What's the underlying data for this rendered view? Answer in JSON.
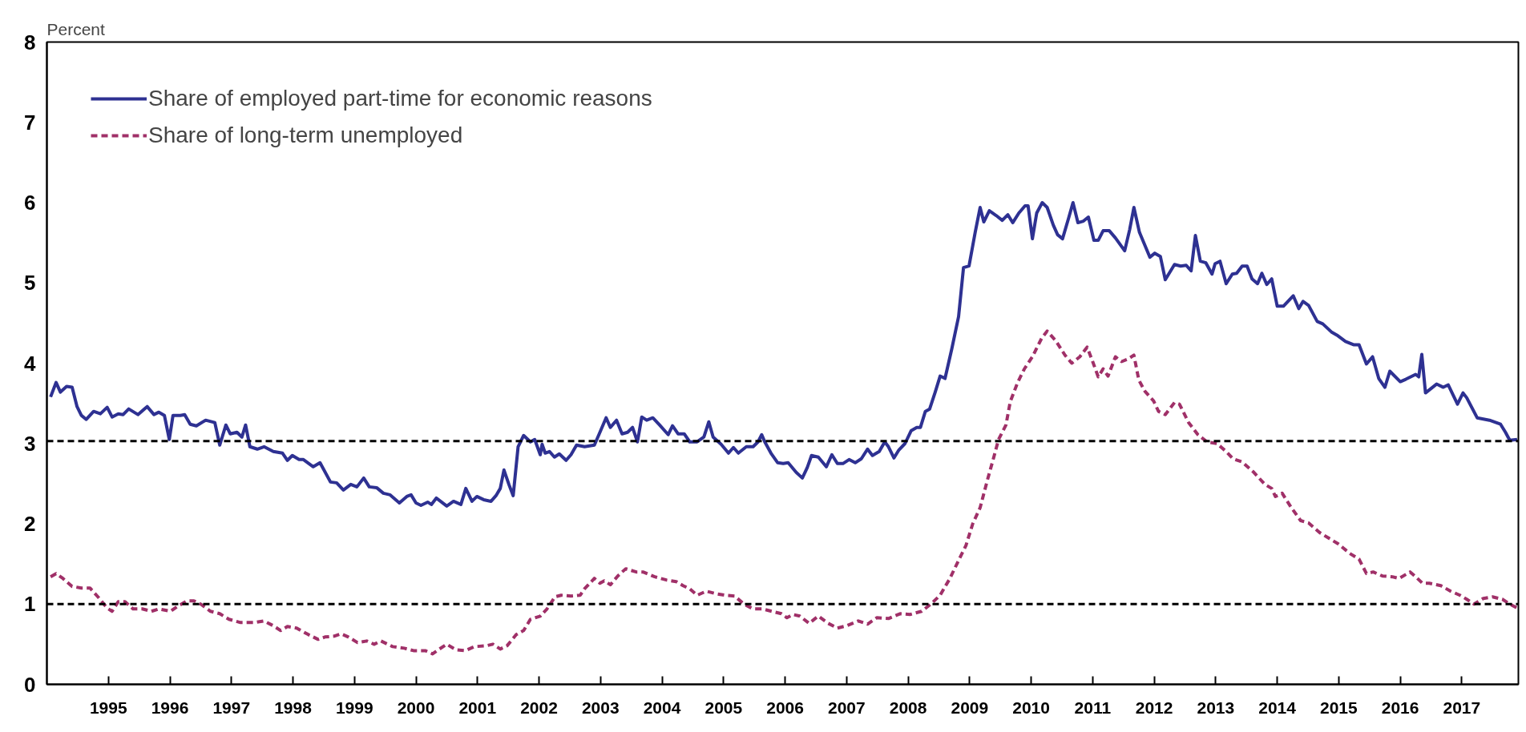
{
  "chart_data": {
    "type": "line",
    "ylabel": "Percent",
    "xlim": [
      1994,
      2017.92
    ],
    "xticks": [
      1995,
      1996,
      1997,
      1998,
      1999,
      2000,
      2001,
      2002,
      2003,
      2004,
      2005,
      2006,
      2007,
      2008,
      2009,
      2010,
      2011,
      2012,
      2013,
      2014,
      2015,
      2016,
      2017
    ],
    "ylim": [
      0,
      8
    ],
    "yticks": [
      0,
      1,
      2,
      3,
      4,
      5,
      6,
      7,
      8
    ],
    "grid": false,
    "legend": "top left",
    "ref_lines": [
      {
        "axis": "y",
        "value": 3.03,
        "color": "#000000",
        "line_style": "dashed"
      },
      {
        "axis": "y",
        "value": 1.0,
        "color": "#000000",
        "line_style": "dashed"
      }
    ],
    "series": [
      {
        "name": "Share of employed part-time for economic reasons",
        "color": "#2e3192",
        "line_style": "solid",
        "x": [
          1994.06,
          1994.15,
          1994.22,
          1994.32,
          1994.41,
          1994.49,
          1994.56,
          1994.64,
          1994.76,
          1994.87,
          1994.98,
          1995.06,
          1995.16,
          1995.24,
          1995.33,
          1995.48,
          1995.63,
          1995.74,
          1995.82,
          1995.91,
          1995.99,
          1996.05,
          1996.17,
          1996.24,
          1996.33,
          1996.43,
          1996.58,
          1996.73,
          1996.81,
          1996.91,
          1996.98,
          1997.09,
          1997.17,
          1997.23,
          1997.3,
          1997.42,
          1997.53,
          1997.68,
          1997.83,
          1997.91,
          1997.99,
          1998.1,
          1998.17,
          1998.33,
          1998.44,
          1998.61,
          1998.71,
          1998.82,
          1998.94,
          1999.04,
          1999.15,
          1999.24,
          1999.36,
          1999.47,
          1999.58,
          1999.73,
          1999.85,
          1999.92,
          2000.0,
          2000.08,
          2000.19,
          2000.25,
          2000.33,
          2000.5,
          2000.61,
          2000.73,
          2000.81,
          2000.91,
          2000.99,
          2001.1,
          2001.22,
          2001.3,
          2001.37,
          2001.43,
          2001.51,
          2001.58,
          2001.66,
          2001.75,
          2001.86,
          2001.93,
          2002.02,
          2002.05,
          2002.1,
          2002.17,
          2002.25,
          2002.33,
          2002.44,
          2002.52,
          2002.61,
          2002.74,
          2002.9,
          2002.99,
          2003.09,
          2003.16,
          2003.26,
          2003.35,
          2003.44,
          2003.52,
          2003.6,
          2003.67,
          2003.75,
          2003.85,
          2003.96,
          2004.1,
          2004.17,
          2004.26,
          2004.36,
          2004.45,
          2004.57,
          2004.68,
          2004.76,
          2004.83,
          2004.96,
          2005.08,
          2005.16,
          2005.24,
          2005.37,
          2005.48,
          2005.56,
          2005.62,
          2005.67,
          2005.77,
          2005.88,
          2005.97,
          2006.05,
          2006.18,
          2006.28,
          2006.36,
          2006.43,
          2006.54,
          2006.67,
          2006.76,
          2006.85,
          2006.94,
          2007.04,
          2007.14,
          2007.24,
          2007.34,
          2007.42,
          2007.53,
          2007.62,
          2007.68,
          2007.77,
          2007.85,
          2007.95,
          2008.05,
          2008.14,
          2008.2,
          2008.28,
          2008.35,
          2008.44,
          2008.52,
          2008.6,
          2008.71,
          2008.82,
          2008.9,
          2008.99,
          2009.09,
          2009.17,
          2009.23,
          2009.32,
          2009.43,
          2009.53,
          2009.62,
          2009.7,
          2009.8,
          2009.9,
          2009.95,
          2010.02,
          2010.09,
          2010.18,
          2010.26,
          2010.36,
          2010.43,
          2010.51,
          2010.61,
          2010.68,
          2010.76,
          2010.85,
          2010.93,
          2011.02,
          2011.09,
          2011.17,
          2011.27,
          2011.37,
          2011.52,
          2011.6,
          2011.67,
          2011.76,
          2011.93,
          2012.01,
          2012.1,
          2012.18,
          2012.33,
          2012.43,
          2012.52,
          2012.6,
          2012.67,
          2012.75,
          2012.84,
          2012.94,
          2012.99,
          2013.07,
          2013.17,
          2013.27,
          2013.34,
          2013.43,
          2013.51,
          2013.59,
          2013.68,
          2013.75,
          2013.83,
          2013.91,
          2014.0,
          2014.1,
          2014.26,
          2014.35,
          2014.42,
          2014.51,
          2014.65,
          2014.74,
          2014.88,
          2014.97,
          2015.11,
          2015.24,
          2015.33,
          2015.45,
          2015.55,
          2015.65,
          2015.75,
          2015.83,
          2016.0,
          2016.09,
          2016.25,
          2016.3,
          2016.35,
          2016.41,
          2016.59,
          2016.7,
          2016.78,
          2016.93,
          2017.02,
          2017.08,
          2017.25,
          2017.45,
          2017.63,
          2017.71,
          2017.78,
          2017.9
        ],
        "values": [
          3.58,
          3.76,
          3.64,
          3.71,
          3.7,
          3.46,
          3.35,
          3.3,
          3.4,
          3.37,
          3.45,
          3.33,
          3.37,
          3.36,
          3.43,
          3.36,
          3.46,
          3.36,
          3.39,
          3.35,
          3.05,
          3.35,
          3.35,
          3.36,
          3.24,
          3.22,
          3.29,
          3.26,
          2.98,
          3.23,
          3.12,
          3.14,
          3.08,
          3.23,
          2.96,
          2.93,
          2.96,
          2.9,
          2.88,
          2.79,
          2.85,
          2.8,
          2.8,
          2.71,
          2.76,
          2.52,
          2.51,
          2.42,
          2.49,
          2.46,
          2.57,
          2.46,
          2.45,
          2.38,
          2.36,
          2.26,
          2.34,
          2.36,
          2.26,
          2.23,
          2.27,
          2.24,
          2.32,
          2.22,
          2.28,
          2.24,
          2.44,
          2.28,
          2.34,
          2.3,
          2.28,
          2.35,
          2.44,
          2.67,
          2.49,
          2.35,
          2.96,
          3.1,
          3.02,
          3.05,
          2.86,
          2.99,
          2.88,
          2.9,
          2.83,
          2.87,
          2.79,
          2.86,
          2.98,
          2.96,
          2.98,
          3.14,
          3.32,
          3.2,
          3.29,
          3.12,
          3.14,
          3.2,
          3.02,
          3.33,
          3.29,
          3.32,
          3.23,
          3.11,
          3.22,
          3.12,
          3.12,
          3.02,
          3.02,
          3.08,
          3.27,
          3.08,
          2.99,
          2.88,
          2.95,
          2.88,
          2.96,
          2.96,
          3.02,
          3.11,
          3.02,
          2.88,
          2.76,
          2.75,
          2.76,
          2.64,
          2.57,
          2.7,
          2.85,
          2.83,
          2.71,
          2.86,
          2.75,
          2.75,
          2.8,
          2.76,
          2.81,
          2.93,
          2.85,
          2.9,
          3.02,
          2.96,
          2.82,
          2.92,
          3.0,
          3.16,
          3.2,
          3.2,
          3.4,
          3.43,
          3.64,
          3.84,
          3.81,
          4.18,
          4.58,
          5.19,
          5.21,
          5.63,
          5.94,
          5.76,
          5.9,
          5.84,
          5.78,
          5.85,
          5.75,
          5.87,
          5.96,
          5.96,
          5.55,
          5.87,
          6.0,
          5.94,
          5.72,
          5.6,
          5.55,
          5.81,
          6.0,
          5.75,
          5.77,
          5.82,
          5.53,
          5.53,
          5.65,
          5.65,
          5.56,
          5.4,
          5.66,
          5.94,
          5.63,
          5.32,
          5.37,
          5.33,
          5.04,
          5.23,
          5.21,
          5.22,
          5.15,
          5.59,
          5.27,
          5.25,
          5.11,
          5.24,
          5.27,
          4.99,
          5.11,
          5.12,
          5.21,
          5.21,
          5.05,
          4.99,
          5.12,
          4.98,
          5.05,
          4.71,
          4.71,
          4.84,
          4.68,
          4.77,
          4.72,
          4.52,
          4.49,
          4.39,
          4.35,
          4.27,
          4.23,
          4.23,
          3.99,
          4.08,
          3.81,
          3.7,
          3.9,
          3.77,
          3.8,
          3.86,
          3.83,
          4.11,
          3.63,
          3.74,
          3.7,
          3.73,
          3.49,
          3.63,
          3.57,
          3.32,
          3.29,
          3.24,
          3.14,
          3.04,
          3.05
        ]
      },
      {
        "name": "Share of long-term unemployed",
        "color": "#a03068",
        "line_style": "dashed",
        "x": [
          1994.06,
          1994.15,
          1994.26,
          1994.41,
          1994.56,
          1994.7,
          1994.83,
          1994.98,
          1995.06,
          1995.16,
          1995.27,
          1995.4,
          1995.55,
          1995.7,
          1995.82,
          1996.01,
          1996.12,
          1996.28,
          1996.39,
          1996.5,
          1996.66,
          1996.81,
          1996.96,
          1997.15,
          1997.38,
          1997.53,
          1997.68,
          1997.8,
          1997.91,
          1998.06,
          1998.25,
          1998.41,
          1998.52,
          1998.67,
          1998.78,
          1998.9,
          1999.05,
          1999.2,
          1999.32,
          1999.43,
          1999.62,
          1999.81,
          1999.96,
          2000.15,
          2000.27,
          2000.38,
          2000.5,
          2000.65,
          2000.8,
          2000.95,
          2001.14,
          2001.25,
          2001.37,
          2001.48,
          2001.63,
          2001.75,
          2001.86,
          2002.02,
          2002.13,
          2002.26,
          2002.36,
          2002.52,
          2002.67,
          2002.74,
          2002.9,
          2002.99,
          2003.06,
          2003.16,
          2003.28,
          2003.41,
          2003.58,
          2003.69,
          2003.88,
          2004.07,
          2004.23,
          2004.34,
          2004.45,
          2004.57,
          2004.72,
          2004.87,
          2005.02,
          2005.18,
          2005.33,
          2005.48,
          2005.63,
          2005.78,
          2005.94,
          2006.03,
          2006.13,
          2006.24,
          2006.39,
          2006.54,
          2006.7,
          2006.85,
          2007.0,
          2007.19,
          2007.34,
          2007.49,
          2007.68,
          2007.87,
          2008.03,
          2008.22,
          2008.37,
          2008.52,
          2008.68,
          2008.83,
          2008.94,
          2009.05,
          2009.17,
          2009.28,
          2009.4,
          2009.47,
          2009.59,
          2009.66,
          2009.78,
          2009.89,
          2010.02,
          2010.17,
          2010.26,
          2010.4,
          2010.55,
          2010.66,
          2010.79,
          2010.91,
          2011.0,
          2011.09,
          2011.17,
          2011.25,
          2011.37,
          2011.47,
          2011.57,
          2011.67,
          2011.75,
          2011.85,
          2011.99,
          2012.07,
          2012.18,
          2012.33,
          2012.41,
          2012.56,
          2012.71,
          2012.86,
          2013.02,
          2013.17,
          2013.28,
          2013.43,
          2013.62,
          2013.8,
          2013.91,
          2013.97,
          2014.08,
          2014.23,
          2014.38,
          2014.51,
          2014.69,
          2014.84,
          2014.99,
          2015.18,
          2015.33,
          2015.45,
          2015.56,
          2015.71,
          2015.87,
          2015.98,
          2016.16,
          2016.25,
          2016.36,
          2016.47,
          2016.66,
          2016.82,
          2016.97,
          2017.08,
          2017.2,
          2017.35,
          2017.5,
          2017.66,
          2017.78,
          2017.9
        ],
        "values": [
          1.34,
          1.38,
          1.32,
          1.22,
          1.2,
          1.2,
          1.09,
          0.95,
          0.91,
          1.03,
          1.03,
          0.94,
          0.94,
          0.91,
          0.94,
          0.91,
          0.97,
          1.04,
          1.04,
          1.0,
          0.91,
          0.88,
          0.81,
          0.77,
          0.77,
          0.79,
          0.73,
          0.67,
          0.72,
          0.7,
          0.62,
          0.56,
          0.59,
          0.6,
          0.63,
          0.59,
          0.52,
          0.54,
          0.5,
          0.54,
          0.47,
          0.45,
          0.42,
          0.42,
          0.38,
          0.44,
          0.5,
          0.43,
          0.42,
          0.47,
          0.48,
          0.5,
          0.44,
          0.48,
          0.62,
          0.67,
          0.81,
          0.85,
          0.94,
          1.09,
          1.11,
          1.1,
          1.11,
          1.19,
          1.32,
          1.26,
          1.29,
          1.24,
          1.35,
          1.44,
          1.4,
          1.4,
          1.34,
          1.3,
          1.28,
          1.23,
          1.19,
          1.11,
          1.16,
          1.13,
          1.11,
          1.1,
          1.0,
          0.94,
          0.94,
          0.91,
          0.88,
          0.83,
          0.87,
          0.85,
          0.76,
          0.85,
          0.76,
          0.7,
          0.73,
          0.79,
          0.75,
          0.83,
          0.82,
          0.88,
          0.87,
          0.91,
          1.0,
          1.11,
          1.32,
          1.56,
          1.73,
          2.0,
          2.2,
          2.52,
          2.85,
          3.05,
          3.23,
          3.52,
          3.76,
          3.93,
          4.08,
          4.31,
          4.4,
          4.28,
          4.1,
          4.0,
          4.08,
          4.2,
          4.02,
          3.83,
          3.93,
          3.84,
          4.08,
          4.02,
          4.05,
          4.1,
          3.79,
          3.65,
          3.53,
          3.4,
          3.36,
          3.51,
          3.49,
          3.26,
          3.11,
          3.02,
          3.0,
          2.9,
          2.81,
          2.77,
          2.64,
          2.49,
          2.44,
          2.34,
          2.38,
          2.2,
          2.04,
          2.01,
          1.89,
          1.82,
          1.75,
          1.63,
          1.56,
          1.38,
          1.4,
          1.35,
          1.34,
          1.32,
          1.4,
          1.34,
          1.26,
          1.26,
          1.23,
          1.16,
          1.11,
          1.06,
          1.0,
          1.07,
          1.09,
          1.06,
          1.0,
          0.95
        ]
      }
    ]
  }
}
